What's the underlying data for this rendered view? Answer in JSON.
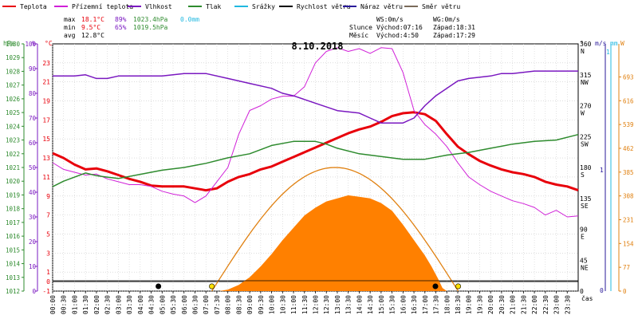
{
  "chart_data": {
    "type": "line",
    "title": "8.10.2018",
    "legend": [
      {
        "label": "Teplota",
        "color": "#e8000b"
      },
      {
        "label": "Přízemní teplota",
        "color": "#d020d8"
      },
      {
        "label": "Vlhkost",
        "color": "#7a18c0"
      },
      {
        "label": "Tlak",
        "color": "#2e8b2e"
      },
      {
        "label": "Srážky",
        "color": "#20b8e0"
      },
      {
        "label": "Rychlost větru",
        "color": "#000000"
      },
      {
        "label": "Náraz větru",
        "color": "#2a1a9a"
      },
      {
        "label": "Směr větru",
        "color": "#7a6a5a"
      }
    ],
    "stats": {
      "max_label": "max",
      "max_temp": "18.1°C",
      "max_hum": "89%",
      "max_press": "1023.4hPa",
      "max_rain": "0.0mm",
      "min_label": "min",
      "min_temp": "9.5°C",
      "min_hum": "65%",
      "min_press": "1019.5hPa",
      "avg_label": "avg",
      "avg_temp": "12.8°C"
    },
    "info": {
      "ws": "WS:0m/s",
      "wg": "WG:0m/s",
      "sun_label": "Slunce",
      "sun_rise": "Východ:07:16",
      "sun_set": "Západ:18:31",
      "moon_label": "Měsíc",
      "moon_rise": "Východ:4:50",
      "moon_set": "Západ:17:29"
    },
    "axis_units": {
      "press": "hPa",
      "hum": "%",
      "temp": "°C",
      "dir": "°",
      "wind": "m/s",
      "rain": "mm",
      "solar": "W"
    },
    "x_label": "čas",
    "x_ticks": [
      "00:00",
      "00:30",
      "01:00",
      "01:30",
      "02:00",
      "02:30",
      "03:00",
      "03:30",
      "04:00",
      "04:30",
      "05:00",
      "05:30",
      "06:00",
      "06:30",
      "07:00",
      "07:30",
      "08:00",
      "08:30",
      "09:00",
      "09:30",
      "10:00",
      "10:30",
      "11:00",
      "11:30",
      "12:00",
      "12:30",
      "13:00",
      "13:30",
      "14:00",
      "14:30",
      "15:00",
      "15:30",
      "16:00",
      "16:30",
      "17:00",
      "17:30",
      "18:00",
      "18:30",
      "19:00",
      "19:30",
      "20:00",
      "20:30",
      "21:00",
      "21:30",
      "22:00",
      "22:30",
      "23:00",
      "23:30"
    ],
    "x_range_hours": [
      0,
      24
    ],
    "axes": {
      "press": {
        "range": [
          1012,
          1030
        ],
        "ticks": [
          1012,
          1013,
          1014,
          1015,
          1016,
          1017,
          1018,
          1019,
          1020,
          1021,
          1022,
          1023,
          1024,
          1025,
          1026,
          1027,
          1028,
          1029,
          1030
        ]
      },
      "hum": {
        "range": [
          0,
          100
        ],
        "ticks": [
          0,
          10,
          20,
          30,
          40,
          50,
          60,
          70,
          80,
          90,
          100
        ]
      },
      "temp": {
        "range": [
          -1,
          25
        ],
        "ticks": [
          -1,
          1,
          3,
          5,
          7,
          9,
          11,
          13,
          15,
          17,
          19,
          21,
          23
        ]
      },
      "temp_zero_label": "0",
      "dir": {
        "range": [
          0,
          360
        ],
        "ticks": [
          {
            "v": 360,
            "l": "360",
            "d": "N"
          },
          {
            "v": 315,
            "l": "315",
            "d": "NW"
          },
          {
            "v": 270,
            "l": "270",
            "d": "W"
          },
          {
            "v": 225,
            "l": "225",
            "d": "SW"
          },
          {
            "v": 180,
            "l": "180",
            "d": "S"
          },
          {
            "v": 135,
            "l": "135",
            "d": "SE"
          },
          {
            "v": 90,
            "l": "90",
            "d": "E"
          },
          {
            "v": 45,
            "l": "45",
            "d": "NE"
          },
          {
            "v": 0,
            "l": "0",
            "d": ""
          }
        ]
      },
      "wind": {
        "ticks": [
          {
            "v": 1,
            "l": "1"
          },
          {
            "v": 0,
            "l": "0"
          }
        ]
      },
      "rain": {
        "ticks": [
          {
            "v": 1,
            "l": "1"
          }
        ]
      },
      "solar": {
        "range": [
          0,
          800
        ],
        "ticks": [
          0,
          77,
          154,
          231,
          308,
          385,
          462,
          539,
          616,
          693
        ]
      }
    },
    "series": [
      {
        "name": "Teplota",
        "color": "#e8000b",
        "axis": "temp",
        "width": 3,
        "points": [
          [
            0,
            13.5
          ],
          [
            0.5,
            13
          ],
          [
            1,
            12.3
          ],
          [
            1.5,
            11.8
          ],
          [
            2,
            11.9
          ],
          [
            2.5,
            11.6
          ],
          [
            3,
            11.2
          ],
          [
            3.5,
            10.8
          ],
          [
            4,
            10.5
          ],
          [
            4.5,
            10.1
          ],
          [
            5,
            10.0
          ],
          [
            5.5,
            10.0
          ],
          [
            6,
            10.0
          ],
          [
            6.5,
            9.8
          ],
          [
            7,
            9.6
          ],
          [
            7.5,
            9.8
          ],
          [
            8,
            10.5
          ],
          [
            8.5,
            11.0
          ],
          [
            9,
            11.3
          ],
          [
            9.5,
            11.8
          ],
          [
            10,
            12.1
          ],
          [
            10.5,
            12.6
          ],
          [
            11,
            13.1
          ],
          [
            11.5,
            13.6
          ],
          [
            12,
            14.1
          ],
          [
            12.5,
            14.6
          ],
          [
            13,
            15.1
          ],
          [
            13.5,
            15.6
          ],
          [
            14,
            16.0
          ],
          [
            14.5,
            16.3
          ],
          [
            15,
            16.8
          ],
          [
            15.5,
            17.4
          ],
          [
            16,
            17.7
          ],
          [
            16.5,
            17.8
          ],
          [
            17,
            17.6
          ],
          [
            17.5,
            16.9
          ],
          [
            18,
            15.5
          ],
          [
            18.5,
            14.2
          ],
          [
            19,
            13.4
          ],
          [
            19.5,
            12.7
          ],
          [
            20,
            12.2
          ],
          [
            20.5,
            11.8
          ],
          [
            21,
            11.5
          ],
          [
            21.5,
            11.3
          ],
          [
            22,
            11.0
          ],
          [
            22.5,
            10.5
          ],
          [
            23,
            10.2
          ],
          [
            23.5,
            10.0
          ],
          [
            24,
            9.6
          ]
        ]
      },
      {
        "name": "Přízemní teplota",
        "color": "#d020d8",
        "axis": "temp",
        "width": 1,
        "points": [
          [
            0,
            12.5
          ],
          [
            0.5,
            11.8
          ],
          [
            1,
            11.5
          ],
          [
            1.5,
            11.2
          ],
          [
            2,
            11.3
          ],
          [
            2.5,
            10.8
          ],
          [
            3,
            10.5
          ],
          [
            3.5,
            10.2
          ],
          [
            4,
            10.2
          ],
          [
            4.5,
            10.0
          ],
          [
            5,
            9.5
          ],
          [
            5.5,
            9.2
          ],
          [
            6,
            9.0
          ],
          [
            6.5,
            8.3
          ],
          [
            7,
            9.0
          ],
          [
            7.5,
            10.5
          ],
          [
            8,
            12.0
          ],
          [
            8.5,
            15.5
          ],
          [
            9,
            18.0
          ],
          [
            9.5,
            18.5
          ],
          [
            10,
            19.2
          ],
          [
            10.5,
            19.5
          ],
          [
            11,
            19.5
          ],
          [
            11.5,
            20.5
          ],
          [
            12,
            23.0
          ],
          [
            12.5,
            24.2
          ],
          [
            13,
            24.6
          ],
          [
            13.5,
            24.2
          ],
          [
            14,
            24.5
          ],
          [
            14.5,
            24.0
          ],
          [
            15,
            24.6
          ],
          [
            15.5,
            24.5
          ],
          [
            16,
            22.0
          ],
          [
            16.5,
            18.0
          ],
          [
            17,
            16.5
          ],
          [
            17.5,
            15.5
          ],
          [
            18,
            14.2
          ],
          [
            18.5,
            12.5
          ],
          [
            19,
            11.0
          ],
          [
            19.5,
            10.2
          ],
          [
            20,
            9.5
          ],
          [
            20.5,
            9.0
          ],
          [
            21,
            8.5
          ],
          [
            21.5,
            8.2
          ],
          [
            22,
            7.8
          ],
          [
            22.5,
            7.0
          ],
          [
            23,
            7.5
          ],
          [
            23.5,
            6.8
          ],
          [
            24,
            6.9
          ]
        ]
      },
      {
        "name": "Vlhkost",
        "color": "#7a18c0",
        "axis": "hum",
        "width": 1.5,
        "points": [
          [
            0,
            87
          ],
          [
            1,
            87
          ],
          [
            1.5,
            87.5
          ],
          [
            2,
            86
          ],
          [
            2.5,
            86
          ],
          [
            3,
            87
          ],
          [
            4,
            87
          ],
          [
            5,
            87
          ],
          [
            6,
            88
          ],
          [
            7,
            88
          ],
          [
            8,
            86
          ],
          [
            9,
            84
          ],
          [
            10,
            82
          ],
          [
            10.5,
            80
          ],
          [
            11,
            79
          ],
          [
            12,
            76
          ],
          [
            13,
            73
          ],
          [
            14,
            72
          ],
          [
            14.5,
            70
          ],
          [
            15,
            68
          ],
          [
            16,
            68
          ],
          [
            16.5,
            70
          ],
          [
            17,
            75
          ],
          [
            17.5,
            79
          ],
          [
            18,
            82
          ],
          [
            18.5,
            85
          ],
          [
            19,
            86
          ],
          [
            20,
            87
          ],
          [
            20.5,
            88
          ],
          [
            21,
            88
          ],
          [
            22,
            89
          ],
          [
            23,
            89
          ],
          [
            24,
            89
          ]
        ]
      },
      {
        "name": "Tlak",
        "color": "#2e8b2e",
        "axis": "press",
        "width": 1.5,
        "points": [
          [
            0,
            1019.6
          ],
          [
            0.5,
            1020.0
          ],
          [
            1,
            1020.3
          ],
          [
            1.5,
            1020.6
          ],
          [
            2,
            1020.4
          ],
          [
            2.5,
            1020.3
          ],
          [
            3,
            1020.2
          ],
          [
            4,
            1020.5
          ],
          [
            5,
            1020.8
          ],
          [
            6,
            1021.0
          ],
          [
            7,
            1021.3
          ],
          [
            8,
            1021.7
          ],
          [
            9,
            1022.0
          ],
          [
            10,
            1022.6
          ],
          [
            11,
            1022.9
          ],
          [
            12,
            1022.9
          ],
          [
            12.5,
            1022.7
          ],
          [
            13,
            1022.4
          ],
          [
            14,
            1022.0
          ],
          [
            15,
            1021.8
          ],
          [
            16,
            1021.6
          ],
          [
            17,
            1021.6
          ],
          [
            18,
            1021.9
          ],
          [
            19,
            1022.1
          ],
          [
            20,
            1022.4
          ],
          [
            21,
            1022.7
          ],
          [
            22,
            1022.9
          ],
          [
            23,
            1023.0
          ],
          [
            24,
            1023.4
          ]
        ]
      }
    ],
    "solar_curve": {
      "name": "Solar theoretical",
      "color": "#e08010",
      "start": 7.27,
      "end": 18.52,
      "peak": 400
    },
    "solar_fill": {
      "color": "#ff8000",
      "points": [
        [
          7.6,
          0
        ],
        [
          8,
          5
        ],
        [
          8.5,
          20
        ],
        [
          9,
          45
        ],
        [
          9.5,
          80
        ],
        [
          10,
          120
        ],
        [
          10.5,
          165
        ],
        [
          11,
          205
        ],
        [
          11.5,
          245
        ],
        [
          12,
          270
        ],
        [
          12.5,
          290
        ],
        [
          13,
          300
        ],
        [
          13.5,
          310
        ],
        [
          14,
          305
        ],
        [
          14.5,
          300
        ],
        [
          15,
          285
        ],
        [
          15.5,
          260
        ],
        [
          16,
          215
        ],
        [
          16.5,
          165
        ],
        [
          17,
          115
        ],
        [
          17.3,
          80
        ],
        [
          17.6,
          40
        ],
        [
          17.8,
          10
        ],
        [
          18,
          0
        ]
      ]
    },
    "markers": [
      {
        "type": "moon",
        "h": 4.83,
        "color": "#000000"
      },
      {
        "type": "sun",
        "h": 7.27,
        "color": "#ffe000"
      },
      {
        "type": "moon",
        "h": 17.48,
        "color": "#000000"
      },
      {
        "type": "sun",
        "h": 18.52,
        "color": "#ffe000"
      }
    ]
  }
}
